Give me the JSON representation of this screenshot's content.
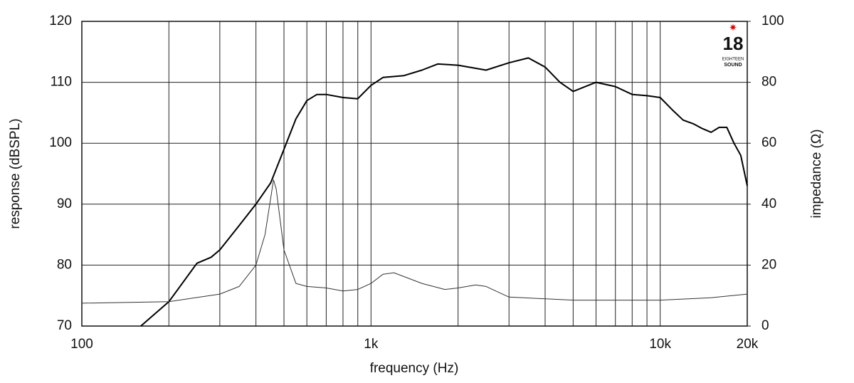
{
  "chart_data": {
    "type": "line",
    "x_scale": "log",
    "xlabel": "frequency (Hz)",
    "ylabel": "response (dBSPL)",
    "y2label": "impedance (Ω)",
    "xlim": [
      100,
      20000
    ],
    "xticks": [
      100,
      {
        "value": 1000,
        "label": "1k"
      },
      {
        "value": 10000,
        "label": "10k"
      },
      {
        "value": 20000,
        "label": "20k"
      }
    ],
    "xgrid": [
      200,
      300,
      400,
      500,
      600,
      700,
      800,
      900,
      2000,
      3000,
      4000,
      5000,
      6000,
      7000,
      8000,
      9000
    ],
    "ylim": [
      70,
      120
    ],
    "yticks": [
      70,
      80,
      90,
      100,
      110,
      120
    ],
    "y2lim": [
      0,
      100
    ],
    "y2ticks": [
      0,
      20,
      40,
      60,
      80,
      100
    ],
    "grid": true,
    "series": [
      {
        "name": "response",
        "color": "#000000",
        "width": 2,
        "x": [
          160,
          200,
          250,
          280,
          300,
          350,
          400,
          450,
          500,
          550,
          600,
          650,
          700,
          800,
          900,
          1000,
          1100,
          1300,
          1500,
          1700,
          2000,
          2500,
          3000,
          3500,
          4000,
          4500,
          5000,
          6000,
          7000,
          8000,
          9000,
          10000,
          11000,
          12000,
          13000,
          14000,
          15000,
          16000,
          17000,
          18000,
          19000,
          20000
        ],
        "values": [
          70,
          74,
          80.3,
          81.3,
          82.5,
          86.5,
          90,
          93.5,
          99,
          104,
          107,
          108,
          108,
          107.5,
          107.3,
          109.5,
          110.8,
          111.1,
          112,
          113,
          112.8,
          112,
          113.2,
          114,
          112.5,
          110,
          108.5,
          110,
          109.3,
          108,
          107.8,
          107.5,
          105.5,
          103.8,
          103.2,
          102.4,
          101.8,
          102.6,
          102.6,
          100,
          98,
          93
        ]
      },
      {
        "name": "impedance",
        "color": "#333333",
        "width": 1,
        "axis": "y2",
        "x": [
          100,
          200,
          300,
          350,
          400,
          430,
          450,
          460,
          470,
          500,
          550,
          600,
          700,
          800,
          900,
          1000,
          1100,
          1200,
          1500,
          1800,
          2000,
          2300,
          2500,
          3000,
          5000,
          8000,
          10000,
          15000,
          20000
        ],
        "values": [
          7.5,
          8,
          10.5,
          13,
          20,
          30,
          42,
          48,
          45,
          25,
          14,
          13,
          12.5,
          11.5,
          12,
          14,
          17,
          17.5,
          14,
          12,
          12.5,
          13.5,
          13,
          9.5,
          8.5,
          8.5,
          8.5,
          9.3,
          10.5
        ]
      }
    ]
  },
  "logo": {
    "number": "18",
    "line1": "EIGHTEEN",
    "line2": "SOUND"
  }
}
